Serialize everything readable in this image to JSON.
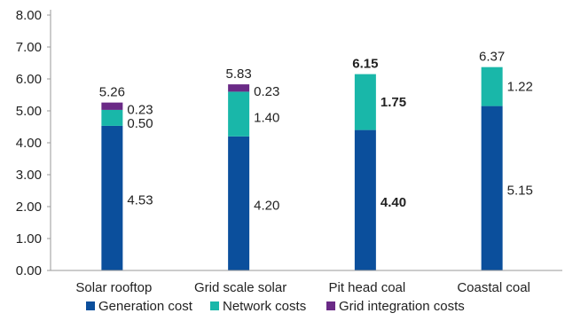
{
  "chart_data": {
    "type": "bar",
    "stacked": true,
    "categories": [
      "Solar rooftop",
      "Grid scale solar",
      "Pit head coal",
      "Coastal coal"
    ],
    "series": [
      {
        "name": "Generation cost",
        "color": "#0b4f9c",
        "values": [
          4.53,
          4.2,
          4.4,
          5.15
        ],
        "labels": [
          "4.53",
          "4.20",
          "4.40",
          "5.15"
        ]
      },
      {
        "name": "Network costs",
        "color": "#19b7a9",
        "values": [
          0.5,
          1.4,
          1.75,
          1.22
        ],
        "labels": [
          "0.50",
          "1.40",
          "1.75",
          "1.22"
        ]
      },
      {
        "name": "Grid integration costs",
        "color": "#6a2a86",
        "values": [
          0.23,
          0.23,
          0,
          0
        ],
        "labels": [
          "0.23",
          "0.23",
          "",
          ""
        ]
      }
    ],
    "totals": [
      "5.26",
      "5.83",
      "6.15",
      "6.37"
    ],
    "bold_categories": [
      "Pit head coal"
    ],
    "y_ticks": [
      "0.00",
      "1.00",
      "2.00",
      "3.00",
      "4.00",
      "5.00",
      "6.00",
      "7.00",
      "8.00"
    ],
    "ylim": [
      0,
      8
    ],
    "grid": false,
    "legend_position": "bottom"
  }
}
